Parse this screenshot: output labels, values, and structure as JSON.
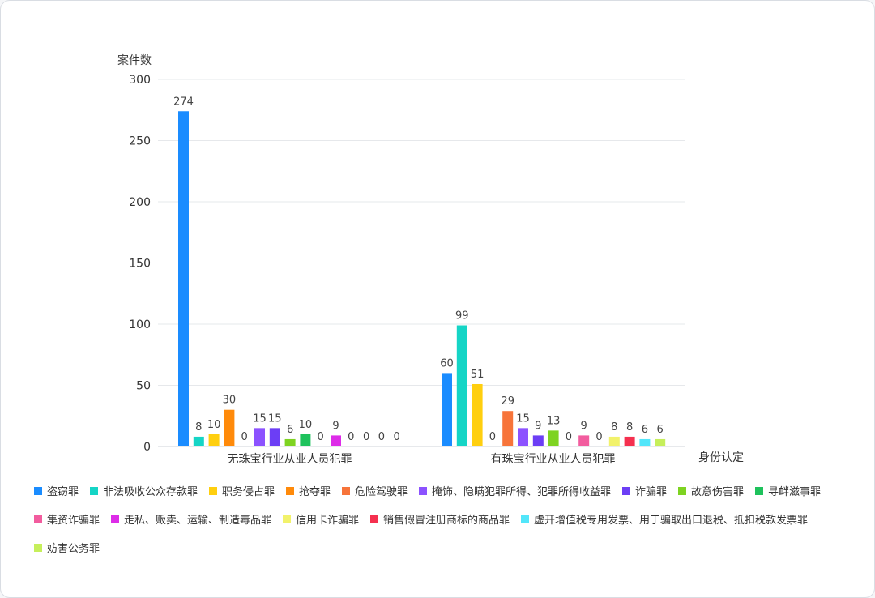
{
  "chart_data": {
    "type": "bar",
    "ylabel": "案件数",
    "xlabel": "身份认定",
    "ylim": [
      0,
      300
    ],
    "yticks": [
      0,
      50,
      100,
      150,
      200,
      250,
      300
    ],
    "grid": true,
    "legend_position": "bottom",
    "categories": [
      "无珠宝行业从业人员犯罪",
      "有珠宝行业从业人员犯罪"
    ],
    "series": [
      {
        "name": "盗窃罪",
        "color": "#1a8cff",
        "values": [
          274,
          60
        ]
      },
      {
        "name": "非法吸收公众存款罪",
        "color": "#15d5c6",
        "values": [
          8,
          99
        ]
      },
      {
        "name": "职务侵占罪",
        "color": "#ffcf0f",
        "values": [
          10,
          51
        ]
      },
      {
        "name": "抢夺罪",
        "color": "#ff8a0a",
        "values": [
          30,
          0
        ]
      },
      {
        "name": "危险驾驶罪",
        "color": "#f7743a",
        "values": [
          0,
          29
        ]
      },
      {
        "name": "掩饰、隐瞒犯罪所得、犯罪所得收益罪",
        "color": "#8c52ff",
        "values": [
          15,
          15
        ]
      },
      {
        "name": "诈骗罪",
        "color": "#6c3ef5",
        "values": [
          15,
          9
        ]
      },
      {
        "name": "故意伤害罪",
        "color": "#7ed321",
        "values": [
          6,
          13
        ]
      },
      {
        "name": "寻衅滋事罪",
        "color": "#1ec25c",
        "values": [
          10,
          0
        ]
      },
      {
        "name": "集资诈骗罪",
        "color": "#f25c9e",
        "values": [
          0,
          9
        ]
      },
      {
        "name": "走私、贩卖、运输、制造毒品罪",
        "color": "#dd2ce8",
        "values": [
          9,
          0
        ]
      },
      {
        "name": "信用卡诈骗罪",
        "color": "#f2f26b",
        "values": [
          0,
          8
        ]
      },
      {
        "name": "销售假冒注册商标的商品罪",
        "color": "#f5304f",
        "values": [
          0,
          8
        ]
      },
      {
        "name": "虚开增值税专用发票、用于骗取出口退税、抵扣税款发票罪",
        "color": "#52e6fa",
        "values": [
          0,
          6
        ]
      },
      {
        "name": "妨害公务罪",
        "color": "#c6ef5b",
        "values": [
          0,
          6
        ]
      }
    ]
  }
}
